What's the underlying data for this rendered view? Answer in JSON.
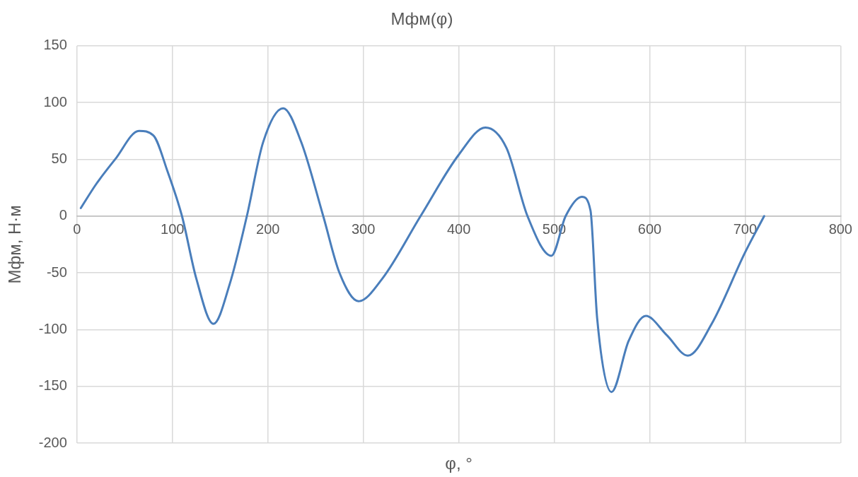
{
  "chart_data": {
    "type": "line",
    "title": "Мфм(φ)",
    "xlabel": "φ, °",
    "ylabel": "Мфм, Н·м",
    "x": [
      4,
      20,
      40,
      65,
      80,
      95,
      110,
      125,
      143,
      160,
      178,
      195,
      216,
      235,
      258,
      275,
      295,
      320,
      360,
      400,
      428,
      450,
      472,
      497,
      512,
      529,
      538,
      545,
      560,
      578,
      596,
      618,
      640,
      665,
      700,
      720
    ],
    "series": [
      {
        "color": "#4a7ebb",
        "values": [
          7,
          28,
          50,
          75,
          71,
          39,
          0,
          -55,
          -95,
          -60,
          0,
          65,
          95,
          65,
          0,
          -50,
          -75,
          -55,
          0,
          54,
          78,
          60,
          0,
          -35,
          0,
          17,
          5,
          -90,
          -155,
          -110,
          -88,
          -105,
          -123,
          -95,
          -32,
          0
        ]
      }
    ],
    "xlim": [
      0,
      800
    ],
    "xticks": [
      0,
      100,
      200,
      300,
      400,
      500,
      600,
      700,
      800
    ],
    "ylim": [
      -200,
      150
    ],
    "yticks": [
      -200,
      -150,
      -100,
      -50,
      0,
      50,
      100,
      150
    ],
    "grid": true,
    "legend": false,
    "marker": "none",
    "line_style": "solid"
  }
}
